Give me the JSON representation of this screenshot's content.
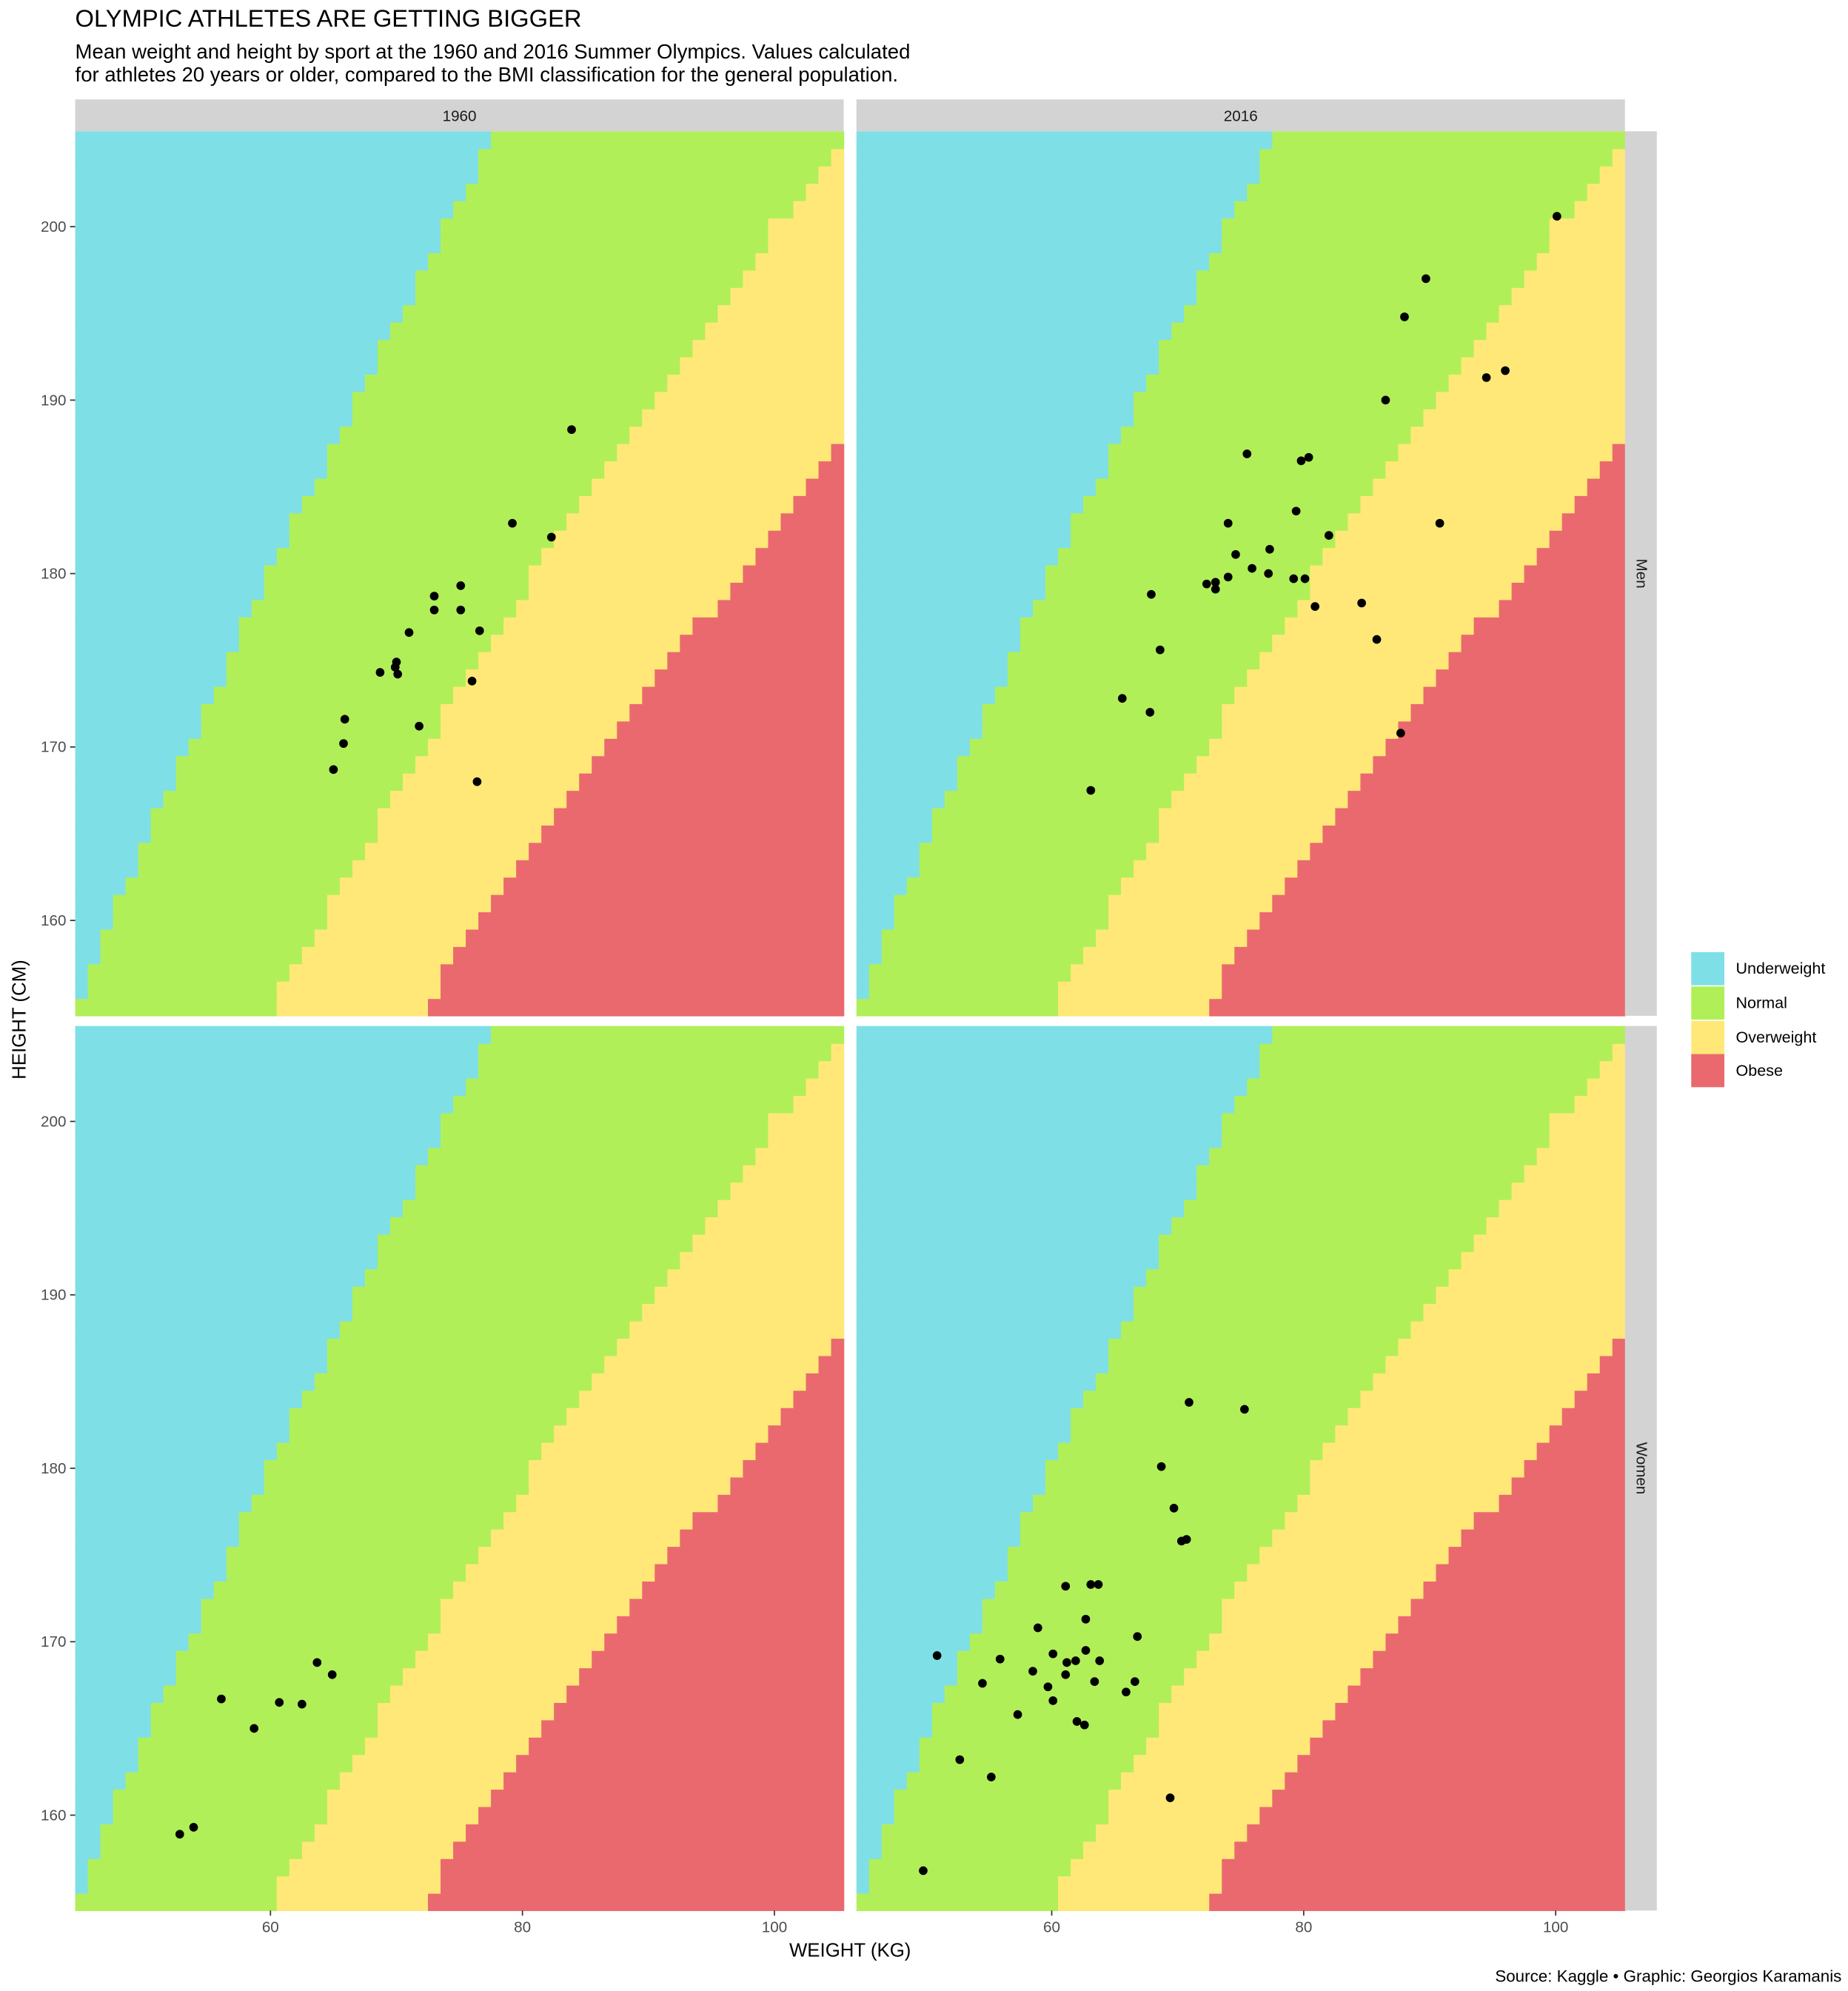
{
  "chart_data": {
    "type": "scatter",
    "title": "OLYMPIC ATHLETES ARE GETTING BIGGER",
    "subtitle_lines": [
      "Mean weight and height by sport at the 1960 and 2016 Summer Olympics. Values calculated",
      "for athletes 20 years or older, compared to the BMI classification for the general population."
    ],
    "xlabel": "WEIGHT (KG)",
    "ylabel": "HEIGHT (CM)",
    "xlim": [
      44.5,
      105.5
    ],
    "ylim": [
      154.5,
      205.5
    ],
    "x_ticks": [
      60,
      80,
      100
    ],
    "y_ticks": [
      160,
      170,
      180,
      190,
      200
    ],
    "grid": false,
    "facet_columns": [
      "1960",
      "2016"
    ],
    "facet_rows": [
      "Men",
      "Women"
    ],
    "legend_position": "right",
    "bmi_classes": [
      {
        "name": "Underweight",
        "bmi_below": 18.5,
        "color": "#7FDFE6"
      },
      {
        "name": "Normal",
        "bmi_below": 25,
        "color": "#B1EF58"
      },
      {
        "name": "Overweight",
        "bmi_below": 30,
        "color": "#FFE877"
      },
      {
        "name": "Obese",
        "bmi_below": null,
        "color": "#EA696E"
      }
    ],
    "panels": [
      {
        "year": "1960",
        "sex": "Men",
        "points": [
          [
            83.9,
            188.3
          ],
          [
            79.2,
            182.9
          ],
          [
            82.3,
            182.1
          ],
          [
            75.1,
            179.3
          ],
          [
            73.0,
            178.7
          ],
          [
            75.1,
            177.9
          ],
          [
            73.0,
            177.9
          ],
          [
            71.0,
            176.6
          ],
          [
            76.6,
            176.7
          ],
          [
            70.0,
            174.9
          ],
          [
            69.9,
            174.6
          ],
          [
            70.1,
            174.2
          ],
          [
            68.7,
            174.3
          ],
          [
            76.0,
            173.8
          ],
          [
            65.9,
            171.6
          ],
          [
            71.8,
            171.2
          ],
          [
            65.8,
            170.2
          ],
          [
            65.0,
            168.7
          ],
          [
            76.4,
            168.0
          ]
        ]
      },
      {
        "year": "2016",
        "sex": "Men",
        "points": [
          [
            100.1,
            200.6
          ],
          [
            89.7,
            197.0
          ],
          [
            88.0,
            194.8
          ],
          [
            86.5,
            190.0
          ],
          [
            96.0,
            191.7
          ],
          [
            94.5,
            191.3
          ],
          [
            75.5,
            186.9
          ],
          [
            79.8,
            186.5
          ],
          [
            80.4,
            186.7
          ],
          [
            79.4,
            183.6
          ],
          [
            74.0,
            182.9
          ],
          [
            90.8,
            182.9
          ],
          [
            82.0,
            182.2
          ],
          [
            74.6,
            181.1
          ],
          [
            77.3,
            181.4
          ],
          [
            75.9,
            180.3
          ],
          [
            74.0,
            179.8
          ],
          [
            77.2,
            180.0
          ],
          [
            79.2,
            179.7
          ],
          [
            80.1,
            179.7
          ],
          [
            72.3,
            179.4
          ],
          [
            73.0,
            179.5
          ],
          [
            73.0,
            179.1
          ],
          [
            67.9,
            178.8
          ],
          [
            80.9,
            178.1
          ],
          [
            84.6,
            178.3
          ],
          [
            85.8,
            176.2
          ],
          [
            68.6,
            175.6
          ],
          [
            65.6,
            172.8
          ],
          [
            67.8,
            172.0
          ],
          [
            87.7,
            170.8
          ],
          [
            63.1,
            167.5
          ]
        ]
      },
      {
        "year": "1960",
        "sex": "Women",
        "points": [
          [
            63.7,
            168.8
          ],
          [
            64.9,
            168.1
          ],
          [
            56.1,
            166.7
          ],
          [
            60.7,
            166.5
          ],
          [
            62.5,
            166.4
          ],
          [
            58.7,
            165.0
          ],
          [
            53.9,
            159.3
          ],
          [
            52.8,
            158.9
          ]
        ]
      },
      {
        "year": "2016",
        "sex": "Women",
        "points": [
          [
            70.9,
            183.8
          ],
          [
            75.3,
            183.4
          ],
          [
            68.7,
            180.1
          ],
          [
            69.7,
            177.7
          ],
          [
            70.3,
            175.8
          ],
          [
            70.7,
            175.9
          ],
          [
            61.1,
            173.2
          ],
          [
            63.1,
            173.3
          ],
          [
            63.7,
            173.3
          ],
          [
            62.7,
            171.3
          ],
          [
            58.9,
            170.8
          ],
          [
            66.8,
            170.3
          ],
          [
            50.9,
            169.2
          ],
          [
            55.9,
            169.0
          ],
          [
            60.1,
            169.3
          ],
          [
            62.7,
            169.5
          ],
          [
            61.2,
            168.8
          ],
          [
            61.9,
            168.9
          ],
          [
            63.8,
            168.9
          ],
          [
            58.5,
            168.3
          ],
          [
            61.1,
            168.1
          ],
          [
            59.7,
            167.4
          ],
          [
            54.5,
            167.6
          ],
          [
            63.4,
            167.7
          ],
          [
            66.6,
            167.7
          ],
          [
            65.9,
            167.1
          ],
          [
            60.1,
            166.6
          ],
          [
            57.3,
            165.8
          ],
          [
            62.0,
            165.4
          ],
          [
            62.6,
            165.2
          ],
          [
            52.7,
            163.2
          ],
          [
            55.2,
            162.2
          ],
          [
            69.4,
            161.0
          ],
          [
            49.8,
            156.8
          ]
        ]
      }
    ]
  },
  "caption": "Source: Kaggle • Graphic: Georgios Karamanis"
}
